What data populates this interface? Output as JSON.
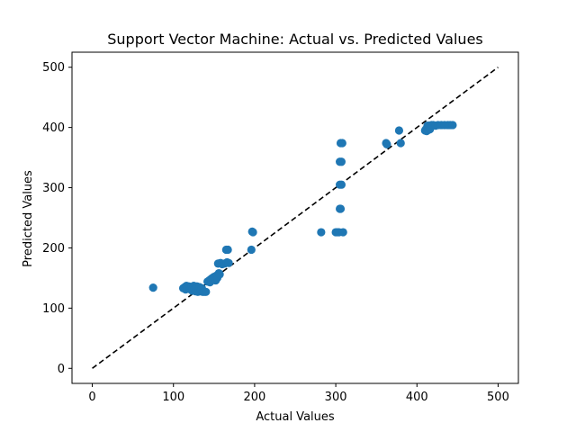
{
  "chart_data": {
    "type": "scatter",
    "title": "Support Vector Machine: Actual vs. Predicted Values",
    "xlabel": "Actual Values",
    "ylabel": "Predicted Values",
    "xlim": [
      -25,
      525
    ],
    "ylim": [
      -25,
      525
    ],
    "xticks": [
      0,
      100,
      200,
      300,
      400,
      500
    ],
    "yticks": [
      0,
      100,
      200,
      300,
      400,
      500
    ],
    "grid": false,
    "point_color": "#1f77b4",
    "reference_line": {
      "x": [
        0,
        500
      ],
      "y": [
        0,
        500
      ],
      "color": "#000000",
      "style": "dashed"
    },
    "series": [
      {
        "x": [
          75,
          112,
          114,
          115,
          116,
          117,
          118,
          119,
          120,
          121,
          122,
          123,
          124,
          125,
          126,
          127,
          128,
          129,
          130,
          131,
          132,
          133,
          134,
          135,
          136,
          137,
          138,
          140,
          142,
          144,
          145,
          146,
          147,
          148,
          149,
          150,
          151,
          152,
          153,
          154,
          155,
          156,
          157,
          158,
          160,
          163,
          165,
          166,
          167,
          168,
          196,
          197,
          198,
          282,
          300,
          302,
          304,
          305,
          305,
          305,
          306,
          306,
          307,
          307,
          308,
          309,
          362,
          363,
          378,
          380,
          410,
          411,
          412,
          413,
          414,
          415,
          416,
          418,
          420,
          423,
          426,
          430,
          434,
          438,
          441,
          444
        ],
        "y": [
          134,
          133,
          135,
          131,
          137,
          134,
          132,
          136,
          133,
          131,
          135,
          129,
          133,
          137,
          131,
          128,
          134,
          136,
          127,
          131,
          135,
          128,
          130,
          133,
          127,
          128,
          127,
          127,
          144,
          146,
          143,
          148,
          146,
          150,
          147,
          152,
          149,
          146,
          154,
          150,
          174,
          158,
          156,
          175,
          173,
          174,
          197,
          176,
          197,
          175,
          197,
          227,
          226,
          226,
          226,
          226,
          226,
          305,
          265,
          343,
          374,
          265,
          305,
          343,
          374,
          226,
          374,
          372,
          395,
          374,
          395,
          397,
          394,
          403,
          396,
          403,
          397,
          404,
          404,
          403,
          404,
          404,
          404,
          404,
          404,
          404
        ]
      }
    ]
  }
}
